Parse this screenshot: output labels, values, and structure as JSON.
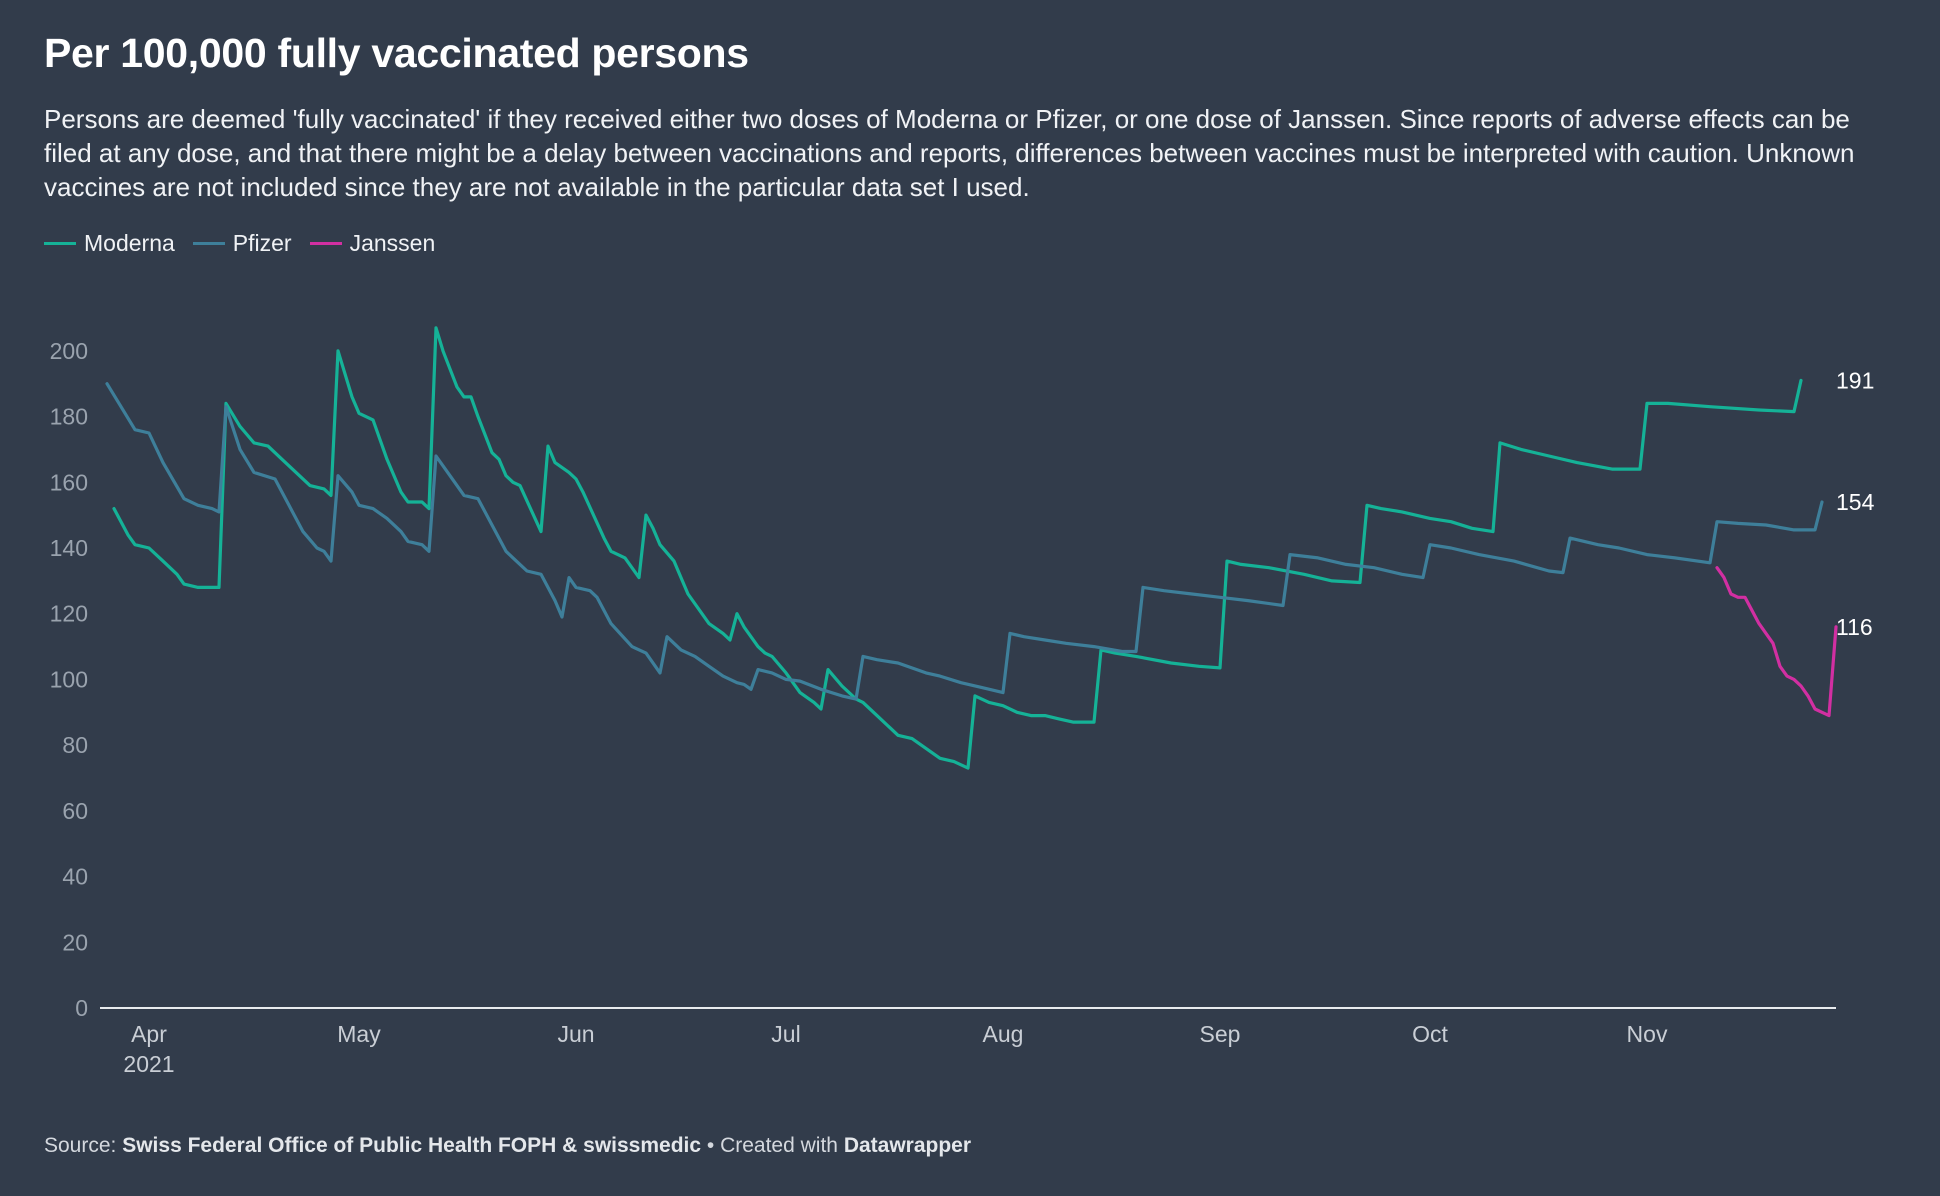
{
  "header": {
    "title": "Per 100,000 fully vaccinated persons",
    "subtitle": "Persons are deemed 'fully vaccinated' if they received either two doses of Moderna or Pfizer, or one dose of Janssen. Since reports of adverse effects can be filed at any dose, and that there might be a delay between vaccinations and reports, differences between vaccines must be interpreted with caution. Unknown vaccines are not included since they are not available in the particular data set I used."
  },
  "legend": [
    {
      "name": "Moderna",
      "color": "#15b297"
    },
    {
      "name": "Pfizer",
      "color": "#3e7f9a"
    },
    {
      "name": "Janssen",
      "color": "#d22fa2"
    }
  ],
  "footer": {
    "source_prefix": "Source: ",
    "source": "Swiss Federal Office of Public Health FOPH & swissmedic",
    "separator": " • Created with ",
    "tool": "Datawrapper"
  },
  "chart_data": {
    "type": "line",
    "title": "Per 100,000 fully vaccinated persons",
    "xlabel": "",
    "ylabel": "",
    "x_axis": {
      "type": "date",
      "domain": [
        "2021-03-25",
        "2021-11-28"
      ],
      "ticks": [
        {
          "date": "2021-04-01",
          "label": "Apr",
          "sublabel": "2021"
        },
        {
          "date": "2021-05-01",
          "label": "May"
        },
        {
          "date": "2021-06-01",
          "label": "Jun"
        },
        {
          "date": "2021-07-01",
          "label": "Jul"
        },
        {
          "date": "2021-08-01",
          "label": "Aug"
        },
        {
          "date": "2021-09-01",
          "label": "Sep"
        },
        {
          "date": "2021-10-01",
          "label": "Oct"
        },
        {
          "date": "2021-11-01",
          "label": "Nov"
        }
      ]
    },
    "y_axis": {
      "ylim": [
        0,
        210
      ],
      "ticks": [
        0,
        20,
        40,
        60,
        80,
        100,
        120,
        140,
        160,
        180,
        200
      ]
    },
    "grid": false,
    "legend_position": "top-left",
    "series": [
      {
        "name": "Moderna",
        "color": "#15b297",
        "end_label": "191",
        "points": [
          [
            "2021-03-27",
            152
          ],
          [
            "2021-03-29",
            144
          ],
          [
            "2021-03-30",
            141
          ],
          [
            "2021-04-01",
            140
          ],
          [
            "2021-04-03",
            136
          ],
          [
            "2021-04-05",
            132
          ],
          [
            "2021-04-06",
            129
          ],
          [
            "2021-04-08",
            128
          ],
          [
            "2021-04-11",
            128
          ],
          [
            "2021-04-12",
            184
          ],
          [
            "2021-04-14",
            177
          ],
          [
            "2021-04-16",
            172
          ],
          [
            "2021-04-18",
            171
          ],
          [
            "2021-04-20",
            167
          ],
          [
            "2021-04-24",
            159
          ],
          [
            "2021-04-26",
            158
          ],
          [
            "2021-04-27",
            156
          ],
          [
            "2021-04-28",
            200
          ],
          [
            "2021-04-30",
            186
          ],
          [
            "2021-05-01",
            181
          ],
          [
            "2021-05-03",
            179
          ],
          [
            "2021-05-05",
            167
          ],
          [
            "2021-05-07",
            157
          ],
          [
            "2021-05-08",
            154
          ],
          [
            "2021-05-10",
            154
          ],
          [
            "2021-05-11",
            152
          ],
          [
            "2021-05-12",
            207
          ],
          [
            "2021-05-13",
            200
          ],
          [
            "2021-05-15",
            189
          ],
          [
            "2021-05-16",
            186
          ],
          [
            "2021-05-17",
            186
          ],
          [
            "2021-05-18",
            180
          ],
          [
            "2021-05-20",
            169
          ],
          [
            "2021-05-21",
            167
          ],
          [
            "2021-05-22",
            162
          ],
          [
            "2021-05-23",
            160
          ],
          [
            "2021-05-24",
            159
          ],
          [
            "2021-05-27",
            145
          ],
          [
            "2021-05-28",
            171
          ],
          [
            "2021-05-29",
            166
          ],
          [
            "2021-05-31",
            163
          ],
          [
            "2021-06-01",
            161
          ],
          [
            "2021-06-02",
            157
          ],
          [
            "2021-06-05",
            143
          ],
          [
            "2021-06-06",
            139
          ],
          [
            "2021-06-08",
            137
          ],
          [
            "2021-06-10",
            131
          ],
          [
            "2021-06-11",
            150
          ],
          [
            "2021-06-12",
            146
          ],
          [
            "2021-06-13",
            141
          ],
          [
            "2021-06-15",
            136
          ],
          [
            "2021-06-16",
            131
          ],
          [
            "2021-06-17",
            126
          ],
          [
            "2021-06-20",
            117
          ],
          [
            "2021-06-22",
            114
          ],
          [
            "2021-06-23",
            112
          ],
          [
            "2021-06-24",
            120
          ],
          [
            "2021-06-25",
            116
          ],
          [
            "2021-06-27",
            110
          ],
          [
            "2021-06-28",
            108
          ],
          [
            "2021-06-29",
            107
          ],
          [
            "2021-07-01",
            102
          ],
          [
            "2021-07-03",
            96
          ],
          [
            "2021-07-05",
            93
          ],
          [
            "2021-07-06",
            91
          ],
          [
            "2021-07-07",
            103
          ],
          [
            "2021-07-09",
            98
          ],
          [
            "2021-07-11",
            94
          ],
          [
            "2021-07-12",
            93
          ],
          [
            "2021-07-14",
            89
          ],
          [
            "2021-07-16",
            85
          ],
          [
            "2021-07-17",
            83
          ],
          [
            "2021-07-19",
            82
          ],
          [
            "2021-07-21",
            79
          ],
          [
            "2021-07-23",
            76
          ],
          [
            "2021-07-25",
            75
          ],
          [
            "2021-07-27",
            73
          ],
          [
            "2021-07-28",
            95
          ],
          [
            "2021-07-30",
            93
          ],
          [
            "2021-08-01",
            92
          ],
          [
            "2021-08-03",
            90
          ],
          [
            "2021-08-05",
            89
          ],
          [
            "2021-08-07",
            89
          ],
          [
            "2021-08-09",
            88
          ],
          [
            "2021-08-11",
            87
          ],
          [
            "2021-08-14",
            87
          ],
          [
            "2021-08-15",
            109
          ],
          [
            "2021-08-17",
            108
          ],
          [
            "2021-08-20",
            107
          ],
          [
            "2021-08-25",
            105
          ],
          [
            "2021-08-29",
            104
          ],
          [
            "2021-09-01",
            103.5
          ],
          [
            "2021-09-02",
            136
          ],
          [
            "2021-09-04",
            135
          ],
          [
            "2021-09-08",
            134
          ],
          [
            "2021-09-13",
            132
          ],
          [
            "2021-09-17",
            130
          ],
          [
            "2021-09-21",
            129.5
          ],
          [
            "2021-09-22",
            153
          ],
          [
            "2021-09-24",
            152
          ],
          [
            "2021-09-27",
            151
          ],
          [
            "2021-10-01",
            149
          ],
          [
            "2021-10-04",
            148
          ],
          [
            "2021-10-07",
            146
          ],
          [
            "2021-10-10",
            145
          ],
          [
            "2021-10-11",
            172
          ],
          [
            "2021-10-14",
            170
          ],
          [
            "2021-10-18",
            168
          ],
          [
            "2021-10-22",
            166
          ],
          [
            "2021-10-27",
            164
          ],
          [
            "2021-10-31",
            164
          ],
          [
            "2021-11-01",
            184
          ],
          [
            "2021-11-04",
            184
          ],
          [
            "2021-11-10",
            183
          ],
          [
            "2021-11-17",
            182
          ],
          [
            "2021-11-22",
            181.5
          ],
          [
            "2021-11-23",
            191
          ]
        ]
      },
      {
        "name": "Pfizer",
        "color": "#3e7f9a",
        "end_label": "154",
        "points": [
          [
            "2021-03-26",
            190
          ],
          [
            "2021-03-28",
            183
          ],
          [
            "2021-03-30",
            176
          ],
          [
            "2021-04-01",
            175
          ],
          [
            "2021-04-03",
            166
          ],
          [
            "2021-04-06",
            155
          ],
          [
            "2021-04-08",
            153
          ],
          [
            "2021-04-10",
            152
          ],
          [
            "2021-04-11",
            151
          ],
          [
            "2021-04-12",
            183
          ],
          [
            "2021-04-14",
            170
          ],
          [
            "2021-04-16",
            163
          ],
          [
            "2021-04-19",
            161
          ],
          [
            "2021-04-21",
            153
          ],
          [
            "2021-04-23",
            145
          ],
          [
            "2021-04-25",
            140
          ],
          [
            "2021-04-26",
            139
          ],
          [
            "2021-04-27",
            136
          ],
          [
            "2021-04-28",
            162
          ],
          [
            "2021-04-30",
            157
          ],
          [
            "2021-05-01",
            153
          ],
          [
            "2021-05-03",
            152
          ],
          [
            "2021-05-05",
            149
          ],
          [
            "2021-05-07",
            145
          ],
          [
            "2021-05-08",
            142
          ],
          [
            "2021-05-10",
            141
          ],
          [
            "2021-05-11",
            139
          ],
          [
            "2021-05-12",
            168
          ],
          [
            "2021-05-14",
            162
          ],
          [
            "2021-05-16",
            156
          ],
          [
            "2021-05-18",
            155
          ],
          [
            "2021-05-20",
            147
          ],
          [
            "2021-05-22",
            139
          ],
          [
            "2021-05-23",
            137
          ],
          [
            "2021-05-25",
            133
          ],
          [
            "2021-05-27",
            132
          ],
          [
            "2021-05-29",
            124
          ],
          [
            "2021-05-30",
            119
          ],
          [
            "2021-05-31",
            131
          ],
          [
            "2021-06-01",
            128
          ],
          [
            "2021-06-03",
            127
          ],
          [
            "2021-06-04",
            125
          ],
          [
            "2021-06-06",
            117
          ],
          [
            "2021-06-09",
            110
          ],
          [
            "2021-06-11",
            108
          ],
          [
            "2021-06-13",
            102
          ],
          [
            "2021-06-14",
            113
          ],
          [
            "2021-06-16",
            109
          ],
          [
            "2021-06-18",
            107
          ],
          [
            "2021-06-20",
            104
          ],
          [
            "2021-06-22",
            101
          ],
          [
            "2021-06-24",
            99
          ],
          [
            "2021-06-25",
            98.5
          ],
          [
            "2021-06-26",
            97
          ],
          [
            "2021-06-27",
            103
          ],
          [
            "2021-06-29",
            102
          ],
          [
            "2021-07-01",
            100
          ],
          [
            "2021-07-03",
            99.5
          ],
          [
            "2021-07-06",
            97
          ],
          [
            "2021-07-09",
            95
          ],
          [
            "2021-07-11",
            94
          ],
          [
            "2021-07-12",
            107
          ],
          [
            "2021-07-14",
            106
          ],
          [
            "2021-07-17",
            105
          ],
          [
            "2021-07-21",
            102
          ],
          [
            "2021-07-23",
            101
          ],
          [
            "2021-07-26",
            99
          ],
          [
            "2021-07-29",
            97.5
          ],
          [
            "2021-08-01",
            96
          ],
          [
            "2021-08-02",
            114
          ],
          [
            "2021-08-04",
            113
          ],
          [
            "2021-08-07",
            112
          ],
          [
            "2021-08-10",
            111
          ],
          [
            "2021-08-14",
            110
          ],
          [
            "2021-08-18",
            108.5
          ],
          [
            "2021-08-20",
            108.5
          ],
          [
            "2021-08-21",
            128
          ],
          [
            "2021-08-24",
            127
          ],
          [
            "2021-08-28",
            126
          ],
          [
            "2021-09-01",
            125
          ],
          [
            "2021-09-05",
            124
          ],
          [
            "2021-09-10",
            122.5
          ],
          [
            "2021-09-11",
            138
          ],
          [
            "2021-09-15",
            137
          ],
          [
            "2021-09-19",
            135
          ],
          [
            "2021-09-23",
            134
          ],
          [
            "2021-09-27",
            132
          ],
          [
            "2021-09-30",
            131
          ],
          [
            "2021-10-01",
            141
          ],
          [
            "2021-10-04",
            140
          ],
          [
            "2021-10-08",
            138
          ],
          [
            "2021-10-13",
            136
          ],
          [
            "2021-10-18",
            133
          ],
          [
            "2021-10-20",
            132.5
          ],
          [
            "2021-10-21",
            143
          ],
          [
            "2021-10-25",
            141
          ],
          [
            "2021-10-28",
            140
          ],
          [
            "2021-11-01",
            138
          ],
          [
            "2021-11-05",
            137
          ],
          [
            "2021-11-10",
            135.5
          ],
          [
            "2021-11-11",
            148
          ],
          [
            "2021-11-14",
            147.5
          ],
          [
            "2021-11-18",
            147
          ],
          [
            "2021-11-22",
            145.5
          ],
          [
            "2021-11-25",
            145.5
          ],
          [
            "2021-11-26",
            154
          ]
        ]
      },
      {
        "name": "Janssen",
        "color": "#d22fa2",
        "end_label": "116",
        "points": [
          [
            "2021-11-11",
            134
          ],
          [
            "2021-11-12",
            131
          ],
          [
            "2021-11-13",
            126
          ],
          [
            "2021-11-14",
            125
          ],
          [
            "2021-11-15",
            125
          ],
          [
            "2021-11-17",
            117
          ],
          [
            "2021-11-19",
            111
          ],
          [
            "2021-11-20",
            104
          ],
          [
            "2021-11-21",
            101
          ],
          [
            "2021-11-22",
            100
          ],
          [
            "2021-11-23",
            98
          ],
          [
            "2021-11-24",
            95
          ],
          [
            "2021-11-25",
            91
          ],
          [
            "2021-11-26",
            90
          ],
          [
            "2021-11-27",
            89
          ],
          [
            "2021-11-28",
            116
          ]
        ]
      }
    ]
  }
}
